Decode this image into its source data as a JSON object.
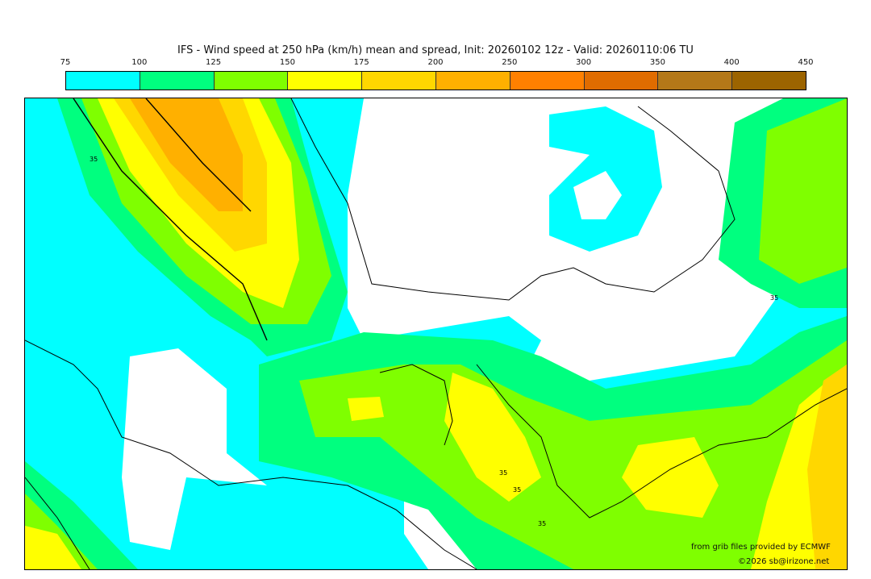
{
  "title": "IFS - Wind speed at 250 hPa (km/h) mean and spread, Init: 20260102 12z - Valid: 20260110:06 TU",
  "colorbar": {
    "ticks": [
      "75",
      "100",
      "125",
      "150",
      "175",
      "200",
      "250",
      "300",
      "350",
      "400",
      "450"
    ],
    "colors": [
      "#00ffff",
      "#00ff7f",
      "#7fff00",
      "#ffff00",
      "#ffd700",
      "#ffb000",
      "#ff8000",
      "#e06c00",
      "#b47818",
      "#9c6400"
    ]
  },
  "map": {
    "contour_labels": [
      "35",
      "35",
      "35",
      "35",
      "35"
    ]
  },
  "credits": {
    "source": "from grib files provided by ECMWF",
    "copyright": "©2026 sb@irizone.net"
  }
}
